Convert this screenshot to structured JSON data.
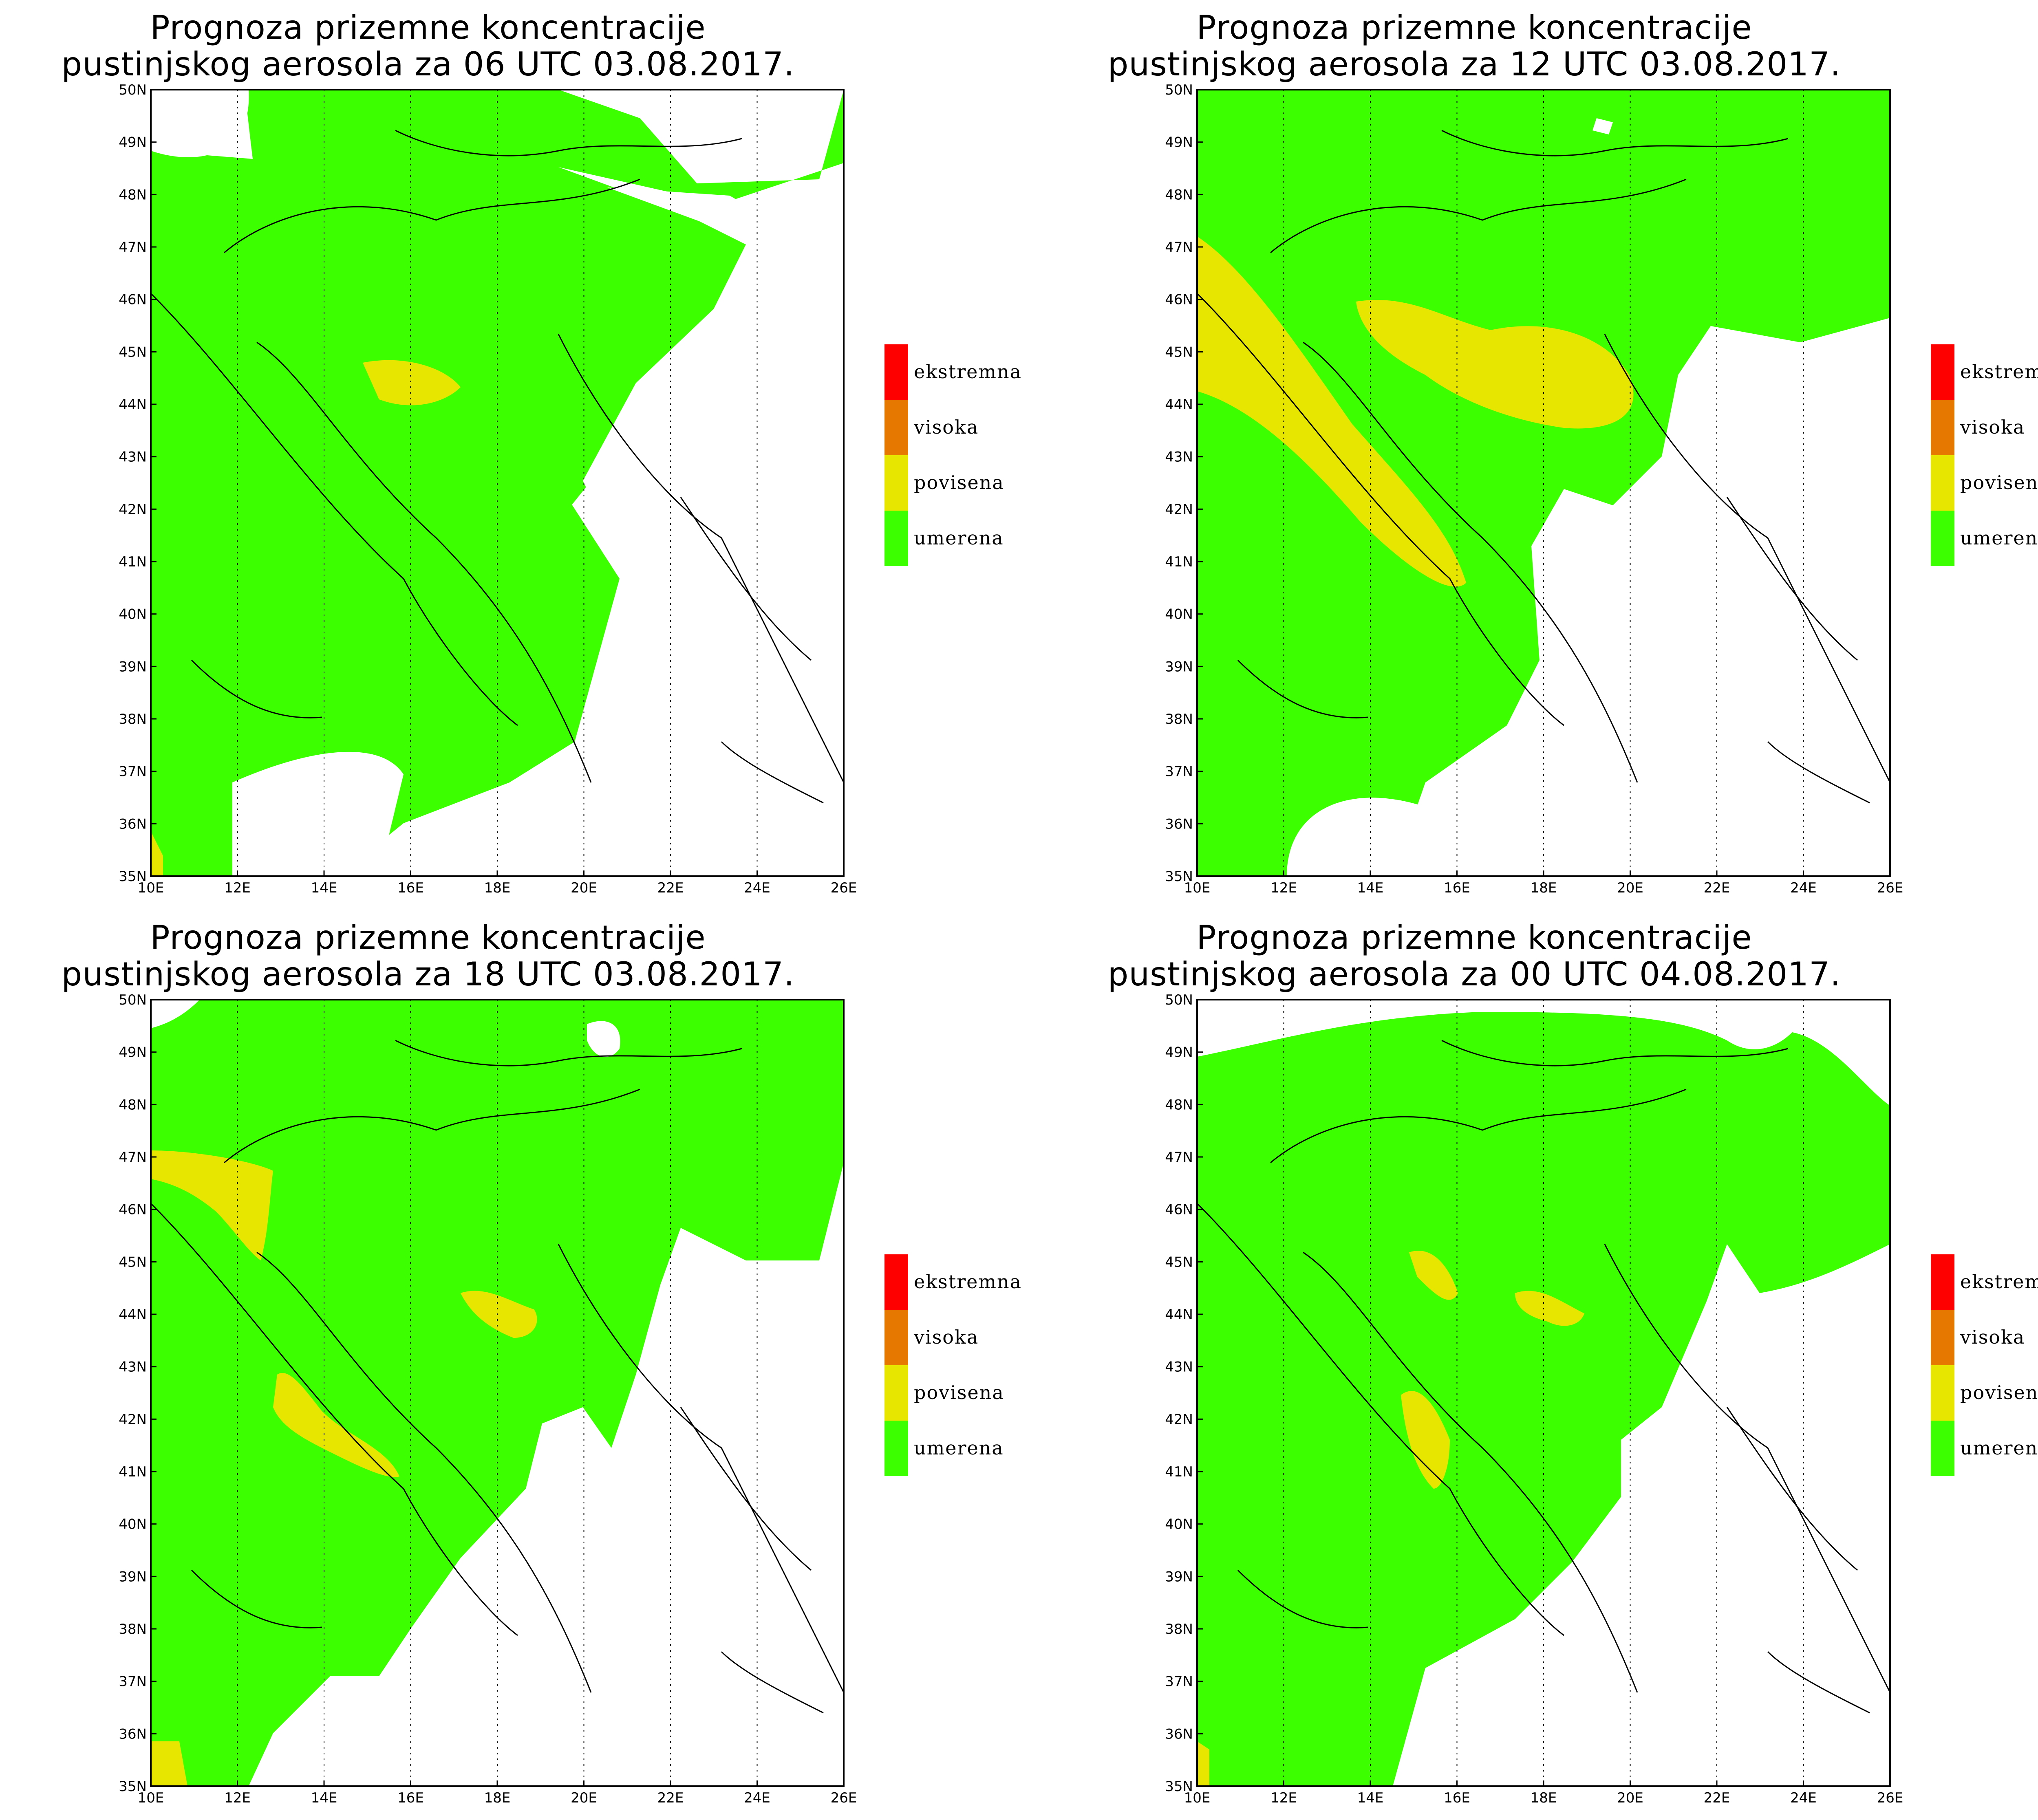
{
  "colors": {
    "umerena": "#3cff00",
    "povisena": "#e6e600",
    "visoka": "#e67800",
    "ekstremna": "#ff0000",
    "land": "#ffffff",
    "border": "#000000"
  },
  "legend": [
    {
      "label": "ekstremna",
      "color": "#ff0000"
    },
    {
      "label": "visoka",
      "color": "#e67800"
    },
    {
      "label": "povisena",
      "color": "#e6e600"
    },
    {
      "label": "umerena",
      "color": "#3cff00"
    }
  ],
  "axes": {
    "x_ticks": [
      "10E",
      "12E",
      "14E",
      "16E",
      "18E",
      "20E",
      "22E",
      "24E",
      "26E"
    ],
    "y_ticks": [
      "50N",
      "49N",
      "48N",
      "47N",
      "46N",
      "45N",
      "44N",
      "43N",
      "42N",
      "41N",
      "40N",
      "39N",
      "38N",
      "37N",
      "36N",
      "35N"
    ]
  },
  "panels": [
    {
      "title_line1": "Prognoza prizemne koncentracije",
      "title_line2": "pustinjskog aerosola za 06 UTC 03.08.2017."
    },
    {
      "title_line1": "Prognoza prizemne koncentracije",
      "title_line2": "pustinjskog aerosola za 12 UTC 03.08.2017."
    },
    {
      "title_line1": "Prognoza prizemne koncentracije",
      "title_line2": "pustinjskog aerosola za 18 UTC 03.08.2017."
    },
    {
      "title_line1": "Prognoza prizemne koncentracije",
      "title_line2": "pustinjskog aerosola za 00 UTC 04.08.2017."
    }
  ]
}
